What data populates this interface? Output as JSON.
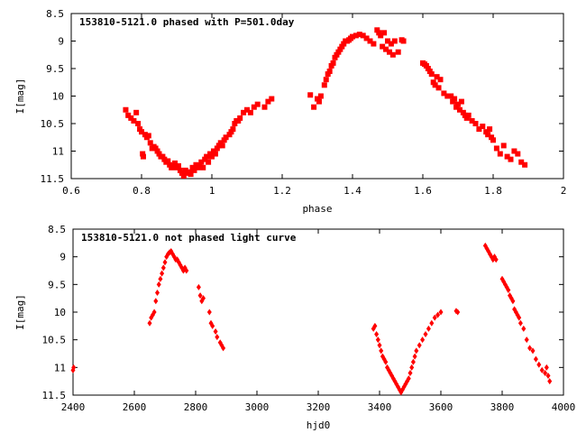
{
  "chart_data": [
    {
      "type": "scatter",
      "title": "153810-5121.0 phased with P=501.0day",
      "xlabel": "phase",
      "ylabel": "I[mag]",
      "xlim": [
        0.6,
        2.0
      ],
      "ylim": [
        11.5,
        8.5
      ],
      "y_inverted": true,
      "xticks": [
        "0.6",
        "0.8",
        "1",
        "1.2",
        "1.4",
        "1.6",
        "1.8",
        "2"
      ],
      "yticks": [
        "8.5",
        "9",
        "9.5",
        "10",
        "10.5",
        "11",
        "11.5"
      ],
      "marker": "filled-square",
      "color": "#ff0000",
      "grid": false,
      "series": [
        {
          "x": [
            0.755,
            0.762,
            0.77,
            0.778,
            0.785,
            0.79,
            0.795,
            0.8,
            0.803,
            0.805,
            0.81,
            0.815,
            0.82,
            0.825,
            0.83,
            0.835,
            0.84,
            0.845,
            0.85,
            0.855,
            0.86,
            0.865,
            0.87,
            0.875,
            0.88,
            0.885,
            0.89,
            0.895,
            0.9,
            0.905,
            0.91,
            0.915,
            0.92,
            0.925,
            0.93,
            0.935,
            0.94,
            0.945,
            0.95,
            0.955,
            0.96,
            0.965,
            0.97,
            0.975,
            0.98,
            0.985,
            0.99,
            0.995,
            1.0,
            1.005,
            1.01,
            1.015,
            1.02,
            1.025,
            1.03,
            1.035,
            1.04,
            1.05,
            1.055,
            1.06,
            1.065,
            1.07,
            1.075,
            1.08,
            1.09,
            1.1,
            1.11,
            1.12,
            1.13,
            1.15,
            1.16,
            1.17,
            1.28,
            1.29,
            1.3,
            1.305,
            1.31,
            1.32,
            1.325,
            1.33,
            1.335,
            1.34,
            1.345,
            1.35,
            1.355,
            1.36,
            1.365,
            1.37,
            1.375,
            1.38,
            1.385,
            1.39,
            1.395,
            1.4,
            1.41,
            1.42,
            1.43,
            1.44,
            1.45,
            1.46,
            1.47,
            1.475,
            1.48,
            1.485,
            1.49,
            1.495,
            1.5,
            1.505,
            1.51,
            1.515,
            1.52,
            1.53,
            1.54,
            1.545,
            1.6,
            1.605,
            1.61,
            1.615,
            1.62,
            1.625,
            1.63,
            1.635,
            1.64,
            1.645,
            1.65,
            1.66,
            1.67,
            1.68,
            1.685,
            1.69,
            1.695,
            1.7,
            1.705,
            1.71,
            1.715,
            1.72,
            1.725,
            1.73,
            1.74,
            1.75,
            1.76,
            1.77,
            1.78,
            1.785,
            1.79,
            1.795,
            1.8,
            1.81,
            1.82,
            1.83,
            1.84,
            1.85,
            1.86,
            1.87,
            1.88,
            1.89
          ],
          "y": [
            10.25,
            10.35,
            10.4,
            10.45,
            10.3,
            10.5,
            10.6,
            10.65,
            11.05,
            11.1,
            10.7,
            10.75,
            10.72,
            10.85,
            10.95,
            10.92,
            10.95,
            11.0,
            11.05,
            11.1,
            11.1,
            11.15,
            11.2,
            11.18,
            11.25,
            11.3,
            11.28,
            11.22,
            11.3,
            11.27,
            11.35,
            11.4,
            11.45,
            11.35,
            11.4,
            11.38,
            11.42,
            11.3,
            11.35,
            11.25,
            11.3,
            11.28,
            11.2,
            11.3,
            11.15,
            11.1,
            11.2,
            11.05,
            11.1,
            11.0,
            11.05,
            10.95,
            10.9,
            10.85,
            10.9,
            10.8,
            10.75,
            10.7,
            10.65,
            10.6,
            10.5,
            10.45,
            10.45,
            10.4,
            10.3,
            10.25,
            10.3,
            10.2,
            10.15,
            10.2,
            10.1,
            10.05,
            9.98,
            10.2,
            10.05,
            10.1,
            10.0,
            9.8,
            9.7,
            9.6,
            9.55,
            9.45,
            9.4,
            9.3,
            9.25,
            9.2,
            9.15,
            9.1,
            9.05,
            9.0,
            9.0,
            8.98,
            8.95,
            8.92,
            8.9,
            8.88,
            8.9,
            8.95,
            9.0,
            9.05,
            8.8,
            8.85,
            8.9,
            9.1,
            8.85,
            9.15,
            9.0,
            9.2,
            9.05,
            9.25,
            9.0,
            9.2,
            8.98,
            9.0,
            9.4,
            9.42,
            9.45,
            9.5,
            9.55,
            9.6,
            9.75,
            9.8,
            9.65,
            9.85,
            9.7,
            9.95,
            10.0,
            10.0,
            10.1,
            10.05,
            10.2,
            10.15,
            10.25,
            10.1,
            10.3,
            10.35,
            10.4,
            10.35,
            10.45,
            10.5,
            10.6,
            10.55,
            10.65,
            10.7,
            10.6,
            10.75,
            10.8,
            10.95,
            11.05,
            10.9,
            11.1,
            11.15,
            11.0,
            11.05,
            11.2,
            11.25
          ]
        }
      ]
    },
    {
      "type": "scatter",
      "title": "153810-5121.0 not phased light curve",
      "xlabel": "hjd0",
      "ylabel": "I[mag]",
      "xlim": [
        2400,
        4000
      ],
      "ylim": [
        11.5,
        8.5
      ],
      "y_inverted": true,
      "xticks": [
        "2400",
        "2600",
        "2800",
        "3000",
        "3200",
        "3400",
        "3600",
        "3800",
        "4000"
      ],
      "yticks": [
        "8.5",
        "9",
        "9.5",
        "10",
        "10.5",
        "11",
        "11.5"
      ],
      "marker": "filled-diamond",
      "color": "#ff0000",
      "grid": false,
      "series": [
        {
          "x": [
            2400,
            2402,
            2650,
            2655,
            2660,
            2665,
            2670,
            2675,
            2680,
            2685,
            2690,
            2695,
            2700,
            2705,
            2710,
            2715,
            2720,
            2725,
            2730,
            2735,
            2740,
            2745,
            2750,
            2755,
            2760,
            2765,
            2770,
            2810,
            2815,
            2820,
            2825,
            2845,
            2850,
            2855,
            2865,
            2870,
            2880,
            2885,
            2890,
            3380,
            3385,
            3390,
            3395,
            3400,
            3405,
            3410,
            3415,
            3420,
            3425,
            3430,
            3435,
            3440,
            3445,
            3450,
            3455,
            3460,
            3465,
            3470,
            3475,
            3480,
            3485,
            3490,
            3495,
            3500,
            3505,
            3510,
            3515,
            3520,
            3530,
            3540,
            3550,
            3560,
            3570,
            3580,
            3590,
            3600,
            3650,
            3655,
            3745,
            3750,
            3755,
            3760,
            3765,
            3770,
            3775,
            3780,
            3800,
            3805,
            3810,
            3815,
            3820,
            3825,
            3830,
            3835,
            3840,
            3845,
            3850,
            3855,
            3860,
            3870,
            3880,
            3890,
            3900,
            3910,
            3920,
            3930,
            3940,
            3945,
            3950,
            3955
          ],
          "y": [
            11.05,
            11.0,
            10.2,
            10.1,
            10.05,
            10.0,
            9.8,
            9.65,
            9.5,
            9.4,
            9.3,
            9.2,
            9.1,
            9.0,
            8.95,
            8.92,
            8.9,
            8.95,
            9.0,
            9.05,
            9.05,
            9.1,
            9.15,
            9.2,
            9.25,
            9.2,
            9.25,
            9.55,
            9.7,
            9.8,
            9.75,
            10.0,
            10.2,
            10.25,
            10.35,
            10.45,
            10.55,
            10.6,
            10.65,
            10.3,
            10.25,
            10.4,
            10.5,
            10.6,
            10.7,
            10.8,
            10.85,
            10.9,
            11.0,
            11.05,
            11.1,
            11.15,
            11.2,
            11.25,
            11.3,
            11.35,
            11.4,
            11.45,
            11.4,
            11.35,
            11.3,
            11.25,
            11.2,
            11.1,
            11.0,
            10.9,
            10.8,
            10.7,
            10.6,
            10.5,
            10.4,
            10.3,
            10.2,
            10.1,
            10.05,
            10.0,
            9.98,
            10.0,
            8.8,
            8.85,
            8.9,
            8.95,
            9.0,
            9.05,
            9.0,
            9.05,
            9.4,
            9.45,
            9.5,
            9.55,
            9.6,
            9.7,
            9.75,
            9.8,
            9.95,
            10.0,
            10.05,
            10.1,
            10.2,
            10.3,
            10.5,
            10.65,
            10.7,
            10.85,
            10.95,
            11.05,
            11.1,
            11.0,
            11.15,
            11.25
          ]
        }
      ]
    }
  ]
}
